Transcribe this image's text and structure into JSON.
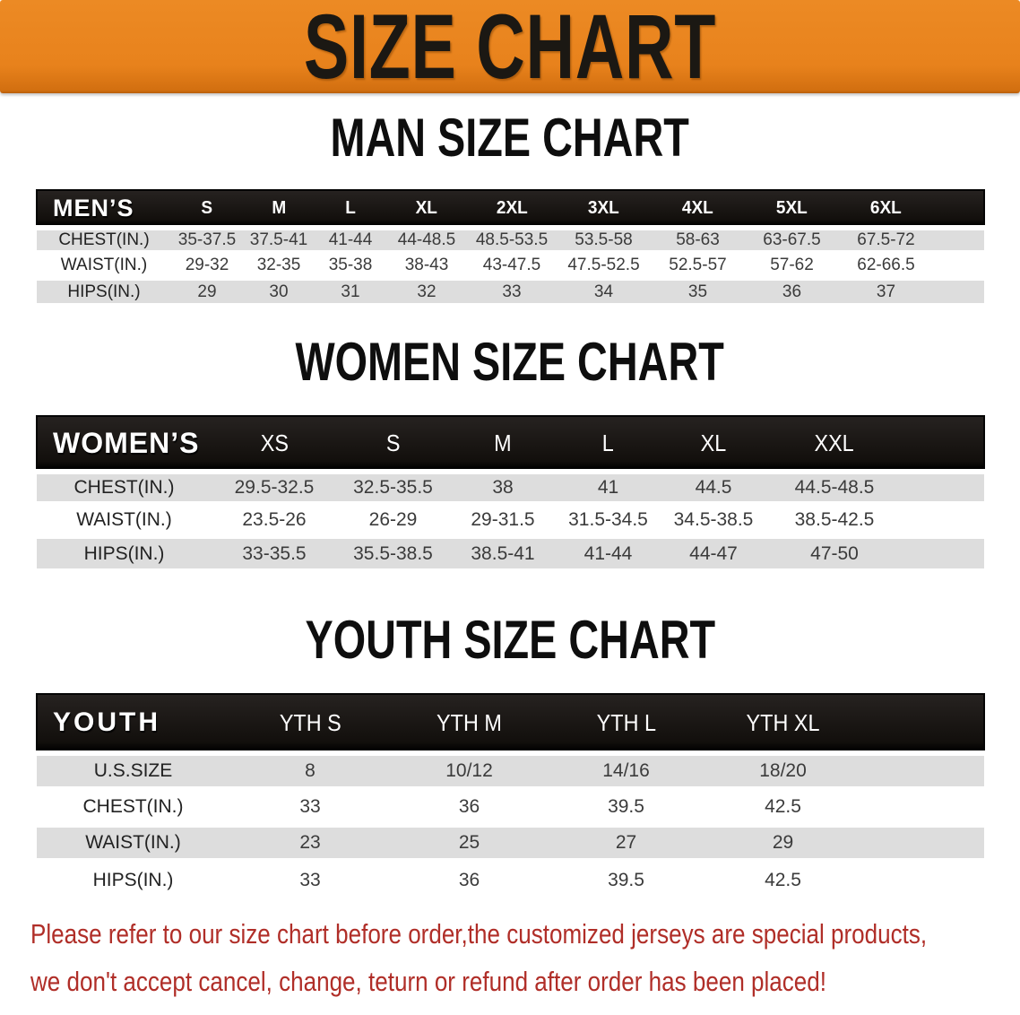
{
  "banner": {
    "title": "SIZE CHART"
  },
  "sections": [
    {
      "heading": "MAN SIZE CHART",
      "header_label": "MEN’S",
      "columns": [
        "S",
        "M",
        "L",
        "XL",
        "2XL",
        "3XL",
        "4XL",
        "5XL",
        "6XL"
      ],
      "rows": [
        {
          "label": "CHEST(IN.)",
          "values": [
            "35-37.5",
            "37.5-41",
            "41-44",
            "44-48.5",
            "48.5-53.5",
            "53.5-58",
            "58-63",
            "63-67.5",
            "67.5-72"
          ]
        },
        {
          "label": "WAIST(IN.)",
          "values": [
            "29-32",
            "32-35",
            "35-38",
            "38-43",
            "43-47.5",
            "47.5-52.5",
            "52.5-57",
            "57-62",
            "62-66.5"
          ]
        },
        {
          "label": "HIPS(IN.)",
          "values": [
            "29",
            "30",
            "31",
            "32",
            "33",
            "34",
            "35",
            "36",
            "37"
          ]
        }
      ]
    },
    {
      "heading": "WOMEN SIZE CHART",
      "header_label": "WOMEN’S",
      "columns": [
        "XS",
        "S",
        "M",
        "L",
        "XL",
        "XXL"
      ],
      "rows": [
        {
          "label": "CHEST(IN.)",
          "values": [
            "29.5-32.5",
            "32.5-35.5",
            "38",
            "41",
            "44.5",
            "44.5-48.5"
          ]
        },
        {
          "label": "WAIST(IN.)",
          "values": [
            "23.5-26",
            "26-29",
            "29-31.5",
            "31.5-34.5",
            "34.5-38.5",
            "38.5-42.5"
          ]
        },
        {
          "label": "HIPS(IN.)",
          "values": [
            "33-35.5",
            "35.5-38.5",
            "38.5-41",
            "41-44",
            "44-47",
            "47-50"
          ]
        }
      ]
    },
    {
      "heading": "YOUTH SIZE CHART",
      "header_label": "YOUTH",
      "columns": [
        "YTH S",
        "YTH M",
        "YTH L",
        "YTH XL"
      ],
      "rows": [
        {
          "label": "U.S.SIZE",
          "values": [
            "8",
            "10/12",
            "14/16",
            "18/20"
          ]
        },
        {
          "label": "CHEST(IN.)",
          "values": [
            "33",
            "36",
            "39.5",
            "42.5"
          ]
        },
        {
          "label": "WAIST(IN.)",
          "values": [
            "23",
            "25",
            "27",
            "29"
          ]
        },
        {
          "label": "HIPS(IN.)",
          "values": [
            "33",
            "36",
            "39.5",
            "42.5"
          ]
        }
      ]
    }
  ],
  "footer": {
    "line1": "Please refer to our size chart before order,the customized jerseys are special products,",
    "line2": "we don't accept cancel, change, teturn or refund after order has been placed!"
  },
  "colors": {
    "banner_bg": "#e8821c",
    "banner_text": "#1b1813",
    "header_bar_bg": "#17130f",
    "header_bar_text": "#ffffff",
    "row_stripe": "#dddddd",
    "value_text": "#3b3b3b",
    "footer_text": "#b02e28"
  }
}
